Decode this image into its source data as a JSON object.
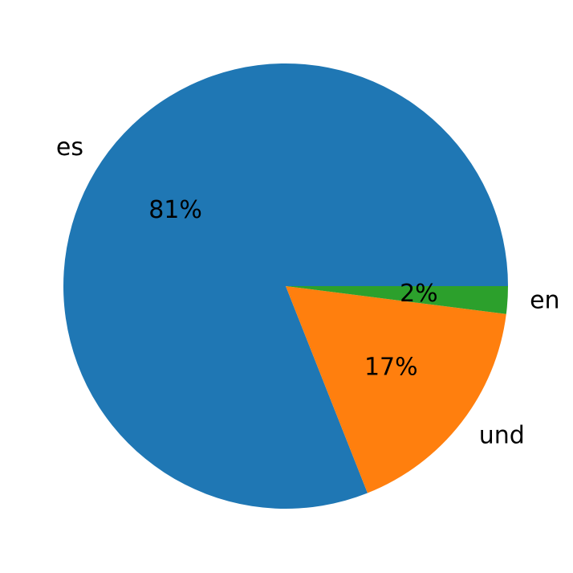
{
  "chart_data": {
    "type": "pie",
    "categories": [
      "es",
      "und",
      "en"
    ],
    "values": [
      81,
      17,
      2
    ],
    "value_labels": [
      "81%",
      "17%",
      "2%"
    ],
    "colors": [
      "#1f77b4",
      "#ff7f0e",
      "#2ca02c"
    ]
  }
}
